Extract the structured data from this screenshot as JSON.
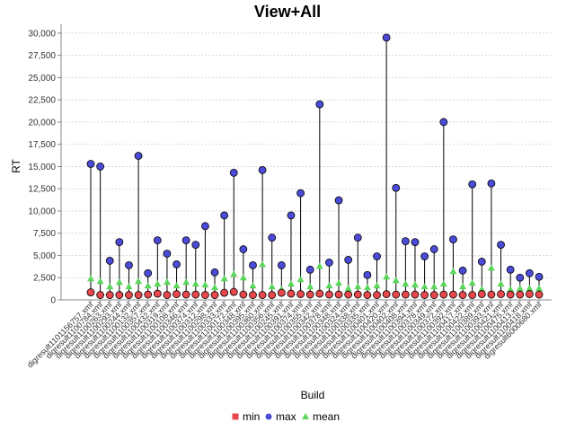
{
  "chart_data": {
    "type": "scatter",
    "title": "View+All",
    "xlabel": "Build",
    "ylabel": "RT",
    "ylim": [
      0,
      31000
    ],
    "yticks": [
      0,
      2500,
      5000,
      7500,
      10000,
      12500,
      15000,
      17500,
      20000,
      22500,
      25000,
      27500,
      30000
    ],
    "ytick_labels": [
      "0",
      "2,500",
      "5,000",
      "7,500",
      "10,000",
      "12,500",
      "15,000",
      "17,500",
      "20,000",
      "22,500",
      "25,000",
      "27,500",
      "30,000"
    ],
    "grid": true,
    "legend_position": "bottom",
    "categories": [
      "digresult1101156757.xml",
      "digresult1100784.xml",
      "digresult1100263.xml",
      "digresult1100293.xml",
      "digresult1100244.xml",
      "digresult1100132.xml",
      "digresult1100357.xml",
      "digresult1100432.xml",
      "digresult1100319.xml",
      "digresult1100108.xml",
      "digresult1100346.xml",
      "digresult1100374.xml",
      "digresult1100312.xml",
      "digresult1100298.xml",
      "digresult1100333.xml",
      "digresult1100172.xml",
      "digresult1100348.xml",
      "digresult1100395.xml",
      "digresult1100360.xml",
      "digresult1100356.xml",
      "digresult1100245.xml",
      "digresult1100391.xml",
      "digresult1100374.xml",
      "digresult1100355.xml",
      "digresult1100342.xml",
      "digresult1100378.xml",
      "digresult1100348.xml",
      "digresult1100324.xml",
      "digresult1100338.xml",
      "digresult1100335.xml",
      "digresult1100401.xml",
      "digresult1100420.xml",
      "digresult1100402.xml",
      "digresult1100408.xml",
      "digresult1100394.xml",
      "digresult1100378.xml",
      "digresult1100349.xml",
      "digresult1100372.xml",
      "digresult1100392.xml",
      "digresult1100417.xml",
      "digresult1100422.xml",
      "digresult1100389.xml",
      "digresult1100393.xml",
      "digresult1100421.xml",
      "digresult1100475.xml",
      "digresult1100413.xml",
      "digresult1100418.xml",
      "digresult6000680.xml"
    ],
    "series": [
      {
        "name": "min",
        "color": "#e8474c",
        "values": [
          850,
          550,
          550,
          550,
          550,
          550,
          600,
          700,
          550,
          650,
          600,
          600,
          550,
          550,
          800,
          900,
          600,
          550,
          550,
          550,
          800,
          700,
          650,
          600,
          700,
          600,
          600,
          600,
          600,
          550,
          550,
          650,
          600,
          600,
          600,
          550,
          550,
          600,
          600,
          550,
          550,
          650,
          600,
          650,
          600,
          600,
          650,
          600
        ]
      },
      {
        "name": "max",
        "color": "#4b4bd8",
        "values": [
          15300,
          15000,
          4400,
          6500,
          3900,
          16200,
          3000,
          6700,
          5200,
          4000,
          6700,
          6200,
          8300,
          3100,
          9500,
          14300,
          5700,
          3900,
          14600,
          7000,
          3900,
          9500,
          12000,
          3400,
          22000,
          4200,
          11200,
          4500,
          7000,
          2800,
          4900,
          29500,
          12600,
          6600,
          6500,
          4900,
          5700,
          20000,
          6800,
          3300,
          13000,
          4300,
          13100,
          6200,
          3400,
          2500,
          3000,
          2600
        ]
      },
      {
        "name": "mean",
        "color": "#5ad65a",
        "values": [
          2400,
          2100,
          1500,
          2000,
          1500,
          2100,
          1600,
          1800,
          2000,
          1600,
          2000,
          1800,
          1700,
          1400,
          2400,
          2900,
          2500,
          1600,
          4000,
          1500,
          1200,
          1800,
          2300,
          1500,
          3800,
          1600,
          1900,
          1300,
          1500,
          1400,
          1600,
          2600,
          2200,
          1800,
          1700,
          1500,
          1500,
          1800,
          3200,
          1500,
          1900,
          1200,
          3600,
          1800,
          1200,
          1300,
          1300,
          1300
        ]
      }
    ]
  }
}
